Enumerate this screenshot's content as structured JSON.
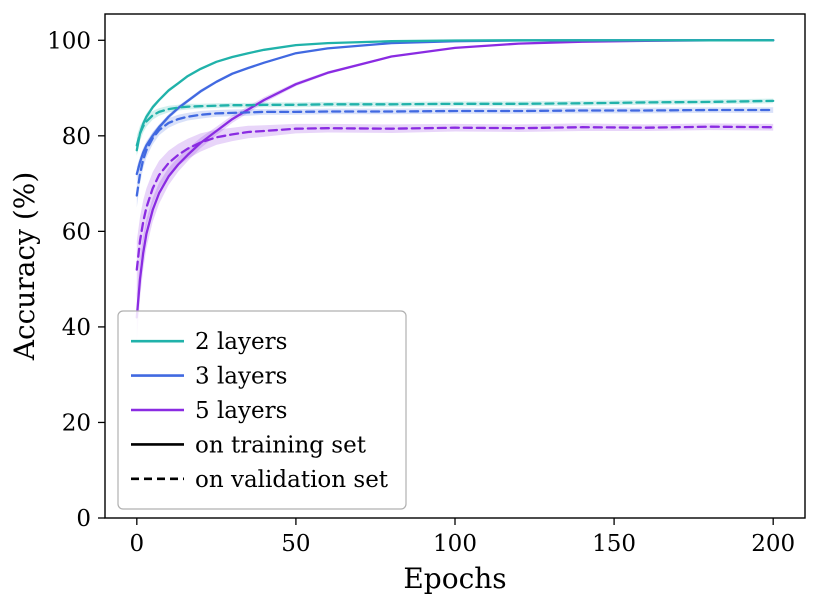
{
  "chart_data": {
    "type": "line",
    "title": "",
    "xlabel": "Epochs",
    "ylabel": "Accuracy (%)",
    "xlim": [
      -10,
      210
    ],
    "ylim": [
      0,
      105.5
    ],
    "xticks": [
      0,
      50,
      100,
      150,
      200
    ],
    "yticks": [
      0,
      20,
      40,
      60,
      80,
      100
    ],
    "grid": false,
    "x": [
      0,
      1,
      2,
      3,
      5,
      7,
      10,
      13,
      16,
      20,
      25,
      30,
      35,
      40,
      50,
      60,
      80,
      100,
      120,
      140,
      160,
      180,
      200
    ],
    "series": [
      {
        "name": "5 layers (training)",
        "color": "#8A2BE2",
        "dash": false,
        "y": [
          42,
          50,
          55.5,
          59.5,
          64.5,
          68,
          71.5,
          74,
          76,
          78.5,
          81,
          83.5,
          85.5,
          87.5,
          90.8,
          93.2,
          96.6,
          98.4,
          99.3,
          99.7,
          99.9,
          100,
          100
        ],
        "band": [
          5,
          4,
          3.5,
          3,
          2.5,
          2.2,
          1.8,
          1.5,
          1.3,
          1.1,
          0.9,
          0.8,
          0.7,
          0.6,
          0.4,
          0.3,
          0.2,
          0.1,
          0.1,
          0,
          0,
          0,
          0
        ]
      },
      {
        "name": "3 layers (training)",
        "color": "#4169E1",
        "dash": false,
        "y": [
          72,
          74.5,
          76.5,
          78,
          80,
          81.8,
          84,
          85.8,
          87.3,
          89.3,
          91.3,
          93,
          94.2,
          95.3,
          97.3,
          98.3,
          99.4,
          99.8,
          99.95,
          100,
          100,
          100,
          100
        ],
        "band": [
          1.5,
          1.2,
          1,
          0.9,
          0.7,
          0.6,
          0.5,
          0.5,
          0.4,
          0.4,
          0.3,
          0.3,
          0.2,
          0.2,
          0.2,
          0.1,
          0.1,
          0,
          0,
          0,
          0,
          0,
          0
        ]
      },
      {
        "name": "2 layers (training)",
        "color": "#20B2AA",
        "dash": false,
        "y": [
          77,
          80.5,
          82.5,
          84,
          86,
          87.5,
          89.5,
          91,
          92.5,
          94,
          95.5,
          96.5,
          97.3,
          98,
          99,
          99.4,
          99.8,
          99.95,
          100,
          100,
          100,
          100,
          100
        ],
        "band": [
          1.2,
          1,
          0.8,
          0.7,
          0.5,
          0.4,
          0.4,
          0.3,
          0.3,
          0.3,
          0.2,
          0.2,
          0.2,
          0.2,
          0.1,
          0.1,
          0.1,
          0,
          0,
          0,
          0,
          0,
          0
        ]
      },
      {
        "name": "5 layers (validation)",
        "color": "#8A2BE2",
        "dash": true,
        "y": [
          52,
          58,
          62,
          65,
          69,
          71.8,
          74.3,
          76,
          77.3,
          78.6,
          79.7,
          80.3,
          80.8,
          81,
          81.5,
          81.6,
          81.5,
          81.7,
          81.6,
          81.8,
          81.7,
          81.9,
          81.8
        ],
        "band": [
          6,
          5,
          4.5,
          4,
          3.4,
          3,
          2.6,
          2.3,
          2.1,
          1.9,
          1.6,
          1.4,
          1.3,
          1.2,
          1,
          0.9,
          0.9,
          0.8,
          0.8,
          0.8,
          0.7,
          0.7,
          0.7
        ]
      },
      {
        "name": "3 layers (validation)",
        "color": "#4169E1",
        "dash": true,
        "y": [
          67.5,
          72,
          75,
          77,
          79.5,
          81.2,
          82.7,
          83.5,
          84,
          84.4,
          84.7,
          84.8,
          84.9,
          85,
          85,
          85.1,
          85.1,
          85.2,
          85.2,
          85.3,
          85.3,
          85.4,
          85.4
        ],
        "band": [
          2.5,
          2,
          1.8,
          1.5,
          1.3,
          1.1,
          1,
          0.9,
          0.8,
          0.8,
          0.7,
          0.7,
          0.7,
          0.6,
          0.6,
          0.6,
          0.6,
          0.6,
          0.6,
          0.6,
          0.6,
          0.6,
          0.6
        ]
      },
      {
        "name": "2 layers (validation)",
        "color": "#20B2AA",
        "dash": true,
        "y": [
          78,
          80.5,
          82,
          83,
          84.3,
          85,
          85.6,
          85.9,
          86.1,
          86.2,
          86.3,
          86.4,
          86.4,
          86.5,
          86.5,
          86.6,
          86.6,
          86.7,
          86.7,
          86.8,
          87,
          87.1,
          87.3
        ],
        "band": [
          2,
          1.6,
          1.3,
          1.1,
          0.9,
          0.8,
          0.7,
          0.6,
          0.6,
          0.5,
          0.5,
          0.5,
          0.5,
          0.5,
          0.5,
          0.5,
          0.5,
          0.5,
          0.5,
          0.5,
          0.5,
          0.5,
          0.5
        ]
      }
    ],
    "legend": {
      "position": "lower left",
      "entries": [
        {
          "label": "2 layers",
          "color": "#20B2AA",
          "dash": false
        },
        {
          "label": "3 layers",
          "color": "#4169E1",
          "dash": false
        },
        {
          "label": "5 layers",
          "color": "#8A2BE2",
          "dash": false
        },
        {
          "label": "on training set",
          "color": "#000000",
          "dash": false
        },
        {
          "label": "on validation set",
          "color": "#000000",
          "dash": true
        }
      ]
    }
  }
}
